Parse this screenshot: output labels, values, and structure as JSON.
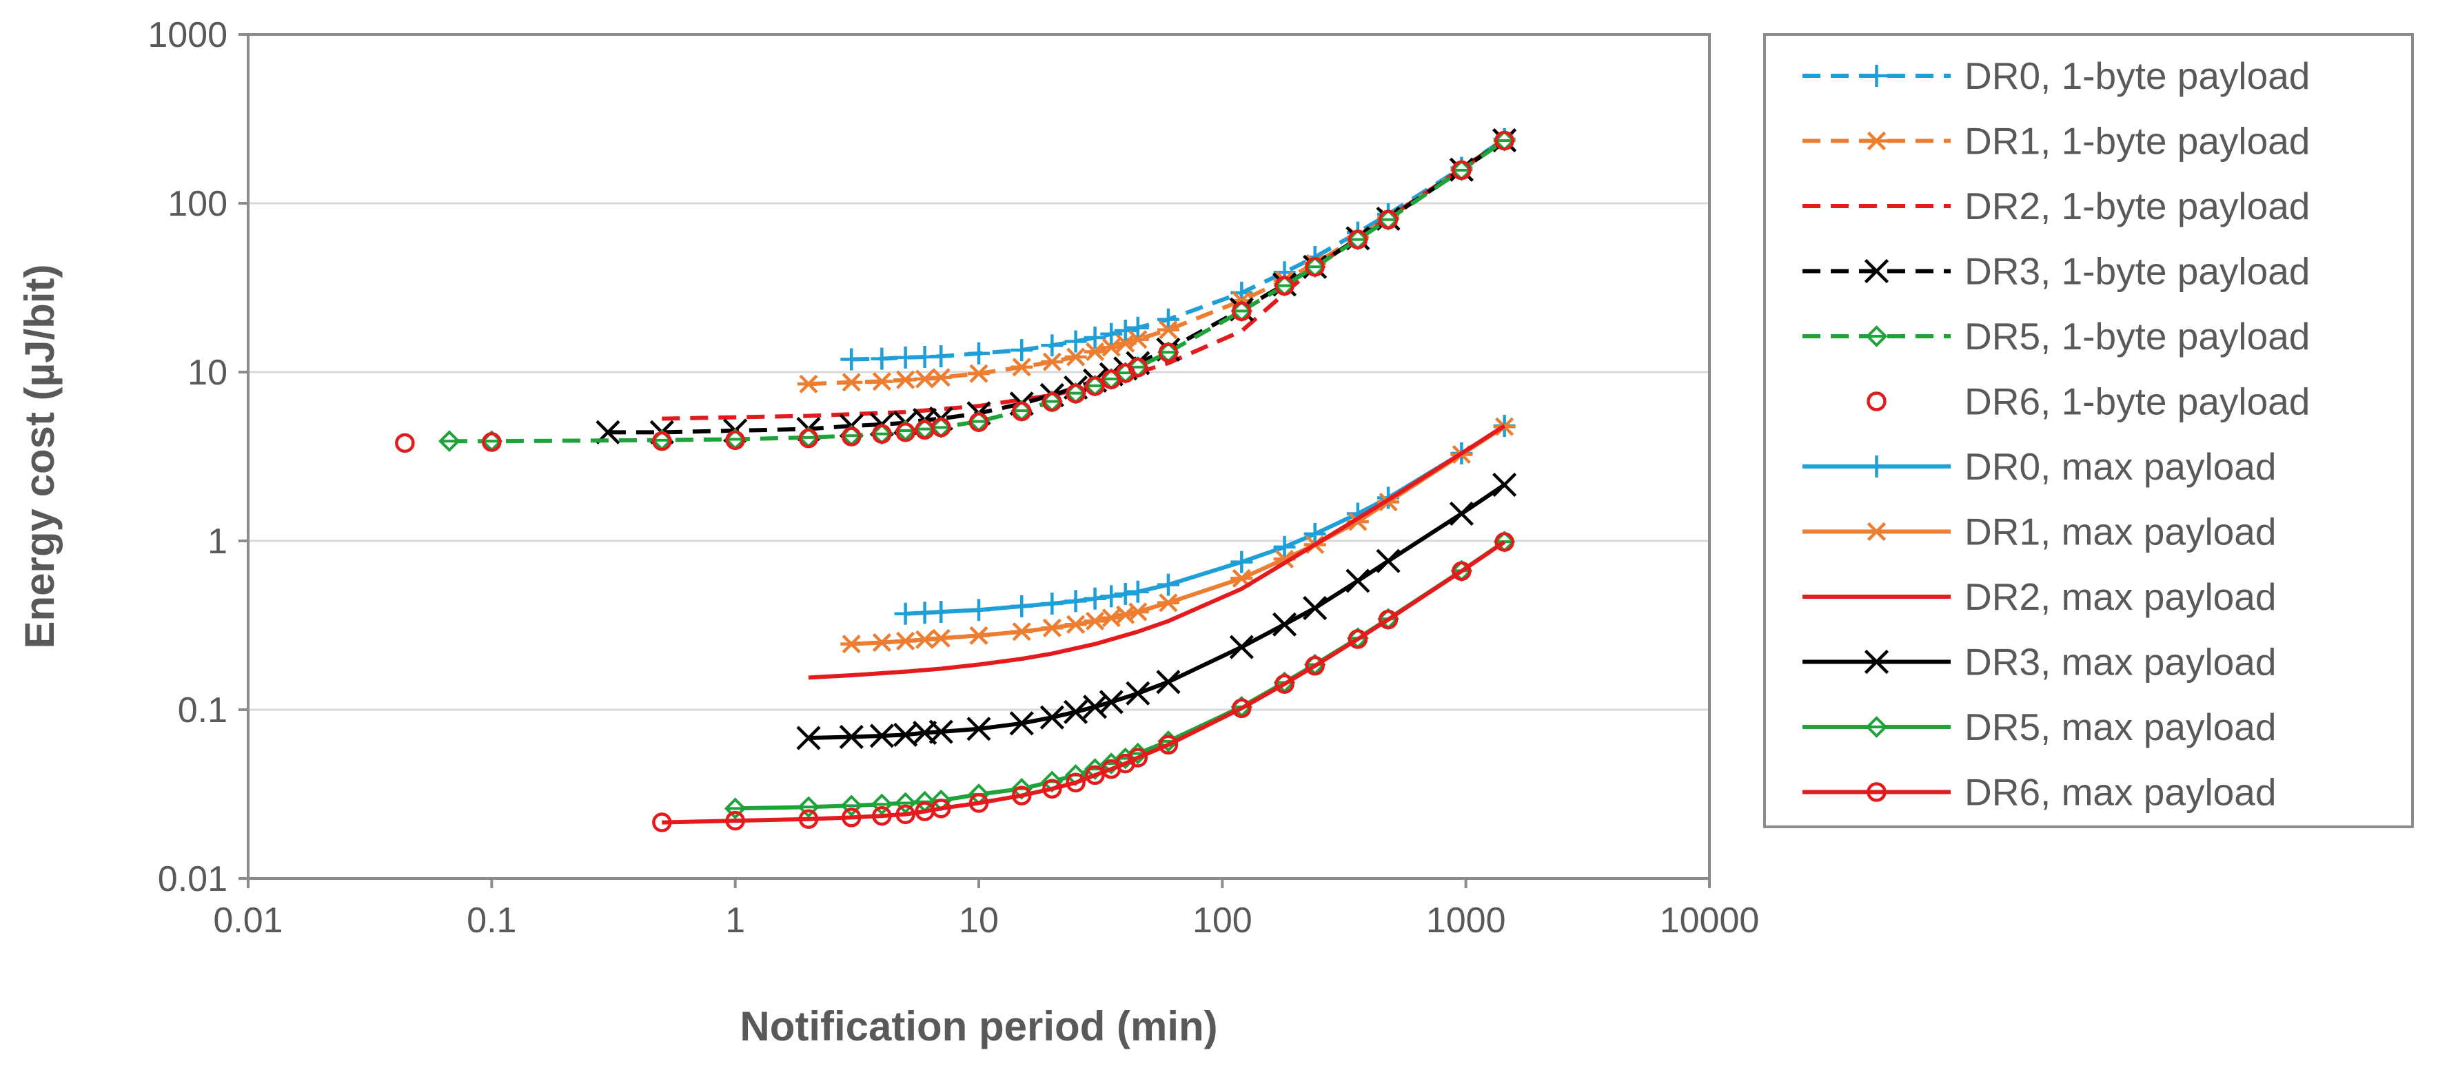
{
  "chart_data": {
    "type": "line",
    "xscale": "log",
    "yscale": "log",
    "xlabel": "Notification period (min)",
    "ylabel": "Energy cost (µJ/bit)",
    "xlim": [
      0.01,
      10000
    ],
    "ylim": [
      0.01,
      1000
    ],
    "xticks": [
      "0.01",
      "0.1",
      "1",
      "10",
      "100",
      "1000",
      "10000"
    ],
    "yticks": [
      "0.01",
      "0.1",
      "1",
      "10",
      "100",
      "1000"
    ],
    "legend_position": "right",
    "series": [
      {
        "name": "DR0, 1-byte payload",
        "color": "#1f9fd8",
        "dash": "dashed",
        "marker": "plus",
        "line": true,
        "x": [
          3,
          4,
          5,
          6,
          7,
          10,
          15,
          20,
          25,
          30,
          35,
          40,
          45,
          60,
          120,
          180,
          240,
          360,
          480,
          960,
          1440
        ],
        "y": [
          11.9,
          12.0,
          12.2,
          12.3,
          12.4,
          12.9,
          13.5,
          14.4,
          15.2,
          16.0,
          16.8,
          17.6,
          18.3,
          20.5,
          29.5,
          39,
          48,
          67,
          86,
          162,
          240
        ]
      },
      {
        "name": "DR1, 1-byte payload",
        "color": "#ed7d31",
        "dash": "dashed",
        "marker": "asterisk",
        "line": true,
        "x": [
          2,
          3,
          4,
          5,
          6,
          7,
          10,
          15,
          20,
          25,
          30,
          35,
          40,
          45,
          60,
          120,
          180,
          240,
          360,
          480,
          960,
          1440
        ],
        "y": [
          8.5,
          8.7,
          8.8,
          9.0,
          9.1,
          9.3,
          9.8,
          10.7,
          11.5,
          12.3,
          13.2,
          14.0,
          14.8,
          15.6,
          17.8,
          26.5,
          35,
          44,
          63,
          82,
          158,
          235
        ]
      },
      {
        "name": "DR2, 1-byte payload",
        "color": "#e41a1c",
        "dash": "dashed",
        "marker": "none",
        "line": true,
        "x": [
          0.5,
          1,
          2,
          5,
          10,
          20,
          30,
          60,
          120,
          240,
          480,
          960,
          1440
        ],
        "y": [
          5.3,
          5.4,
          5.5,
          5.8,
          6.3,
          7.3,
          8.3,
          11.3,
          17.5,
          42,
          82,
          160,
          238
        ]
      },
      {
        "name": "DR3, 1-byte payload",
        "color": "#000000",
        "dash": "dashed",
        "marker": "x",
        "line": true,
        "x": [
          0.3,
          0.5,
          1,
          2,
          3,
          4,
          5,
          6,
          7,
          10,
          15,
          20,
          25,
          30,
          35,
          40,
          45,
          60,
          120,
          180,
          240,
          360,
          480,
          960,
          1440
        ],
        "y": [
          4.4,
          4.4,
          4.5,
          4.6,
          4.8,
          4.9,
          5.0,
          5.2,
          5.3,
          5.7,
          6.5,
          7.3,
          8.1,
          8.9,
          9.7,
          10.5,
          11.3,
          13.6,
          23.5,
          33,
          42,
          62,
          81,
          158,
          236
        ]
      },
      {
        "name": "DR5, 1-byte payload",
        "color": "#1ea23a",
        "dash": "dashed",
        "marker": "diamond",
        "line": true,
        "x": [
          0.067,
          0.1,
          0.5,
          1,
          2,
          3,
          4,
          5,
          6,
          7,
          10,
          15,
          20,
          25,
          30,
          35,
          40,
          45,
          60,
          120,
          180,
          240,
          360,
          480,
          960,
          1440
        ],
        "y": [
          3.9,
          3.9,
          3.95,
          4.0,
          4.1,
          4.2,
          4.3,
          4.5,
          4.6,
          4.7,
          5.1,
          5.9,
          6.7,
          7.5,
          8.3,
          9.1,
          9.9,
          10.7,
          13.1,
          23,
          32.5,
          42,
          61,
          80,
          157,
          235
        ]
      },
      {
        "name": "DR6, 1-byte payload",
        "color": "#e41a1c",
        "dash": "none",
        "marker": "circle",
        "line": false,
        "x": [
          0.044,
          0.1,
          0.5,
          1,
          2,
          3,
          4,
          5,
          6,
          7,
          10,
          15,
          20,
          25,
          30,
          35,
          40,
          45,
          60,
          120,
          180,
          240,
          360,
          480,
          960,
          1440
        ],
        "y": [
          3.8,
          3.85,
          3.9,
          3.95,
          4.05,
          4.15,
          4.3,
          4.4,
          4.55,
          4.7,
          5.05,
          5.85,
          6.65,
          7.45,
          8.25,
          9.05,
          9.85,
          10.65,
          13.05,
          22.9,
          32.4,
          42,
          61,
          80,
          157,
          235
        ]
      },
      {
        "name": "DR0, max payload",
        "color": "#1f9fd8",
        "dash": "solid",
        "marker": "plus",
        "line": true,
        "x": [
          5,
          6,
          7,
          10,
          15,
          20,
          25,
          30,
          35,
          40,
          45,
          60,
          120,
          180,
          240,
          360,
          480,
          960,
          1440
        ],
        "y": [
          0.37,
          0.375,
          0.38,
          0.39,
          0.41,
          0.425,
          0.44,
          0.455,
          0.47,
          0.485,
          0.5,
          0.55,
          0.75,
          0.92,
          1.1,
          1.45,
          1.8,
          3.3,
          4.8
        ]
      },
      {
        "name": "DR1, max payload",
        "color": "#ed7d31",
        "dash": "solid",
        "marker": "asterisk",
        "line": true,
        "x": [
          3,
          4,
          5,
          6,
          7,
          10,
          15,
          20,
          25,
          30,
          35,
          40,
          45,
          60,
          120,
          180,
          240,
          360,
          480,
          960,
          1440
        ],
        "y": [
          0.245,
          0.25,
          0.255,
          0.26,
          0.265,
          0.275,
          0.29,
          0.305,
          0.32,
          0.335,
          0.35,
          0.365,
          0.38,
          0.43,
          0.6,
          0.78,
          0.95,
          1.3,
          1.7,
          3.25,
          4.75
        ]
      },
      {
        "name": "DR2, max payload",
        "color": "#e41a1c",
        "dash": "solid",
        "marker": "none",
        "line": true,
        "x": [
          2,
          3,
          5,
          7,
          10,
          15,
          20,
          30,
          45,
          60,
          120,
          240,
          480,
          960,
          1440
        ],
        "y": [
          0.155,
          0.16,
          0.168,
          0.175,
          0.185,
          0.2,
          0.215,
          0.245,
          0.29,
          0.335,
          0.52,
          0.95,
          1.75,
          3.3,
          4.8
        ]
      },
      {
        "name": "DR3, max payload",
        "color": "#000000",
        "dash": "solid",
        "marker": "x",
        "line": true,
        "x": [
          2,
          3,
          4,
          5,
          6,
          7,
          10,
          15,
          20,
          25,
          30,
          35,
          45,
          60,
          120,
          180,
          240,
          360,
          480,
          960,
          1440
        ],
        "y": [
          0.068,
          0.069,
          0.07,
          0.071,
          0.073,
          0.074,
          0.077,
          0.083,
          0.09,
          0.097,
          0.104,
          0.111,
          0.125,
          0.146,
          0.235,
          0.32,
          0.4,
          0.58,
          0.76,
          1.45,
          2.15
        ]
      },
      {
        "name": "DR5, max payload",
        "color": "#1ea23a",
        "dash": "solid",
        "marker": "diamond",
        "line": true,
        "x": [
          1,
          2,
          3,
          4,
          5,
          6,
          7,
          10,
          15,
          20,
          25,
          30,
          35,
          40,
          45,
          60,
          120,
          180,
          240,
          360,
          480,
          960,
          1440
        ],
        "y": [
          0.026,
          0.0265,
          0.027,
          0.0275,
          0.028,
          0.0285,
          0.029,
          0.0315,
          0.034,
          0.0375,
          0.041,
          0.0445,
          0.048,
          0.0515,
          0.055,
          0.065,
          0.104,
          0.145,
          0.185,
          0.265,
          0.345,
          0.665,
          0.99
        ]
      },
      {
        "name": "DR6, max payload",
        "color": "#e41a1c",
        "dash": "solid",
        "marker": "circle",
        "line": true,
        "x": [
          0.5,
          1,
          2,
          3,
          4,
          5,
          6,
          7,
          10,
          15,
          20,
          25,
          30,
          35,
          40,
          45,
          60,
          120,
          180,
          240,
          360,
          480,
          960,
          1440
        ],
        "y": [
          0.0215,
          0.022,
          0.0225,
          0.023,
          0.0235,
          0.024,
          0.025,
          0.026,
          0.028,
          0.031,
          0.034,
          0.037,
          0.041,
          0.0445,
          0.048,
          0.052,
          0.062,
          0.102,
          0.142,
          0.182,
          0.262,
          0.342,
          0.662,
          0.985
        ]
      }
    ]
  }
}
